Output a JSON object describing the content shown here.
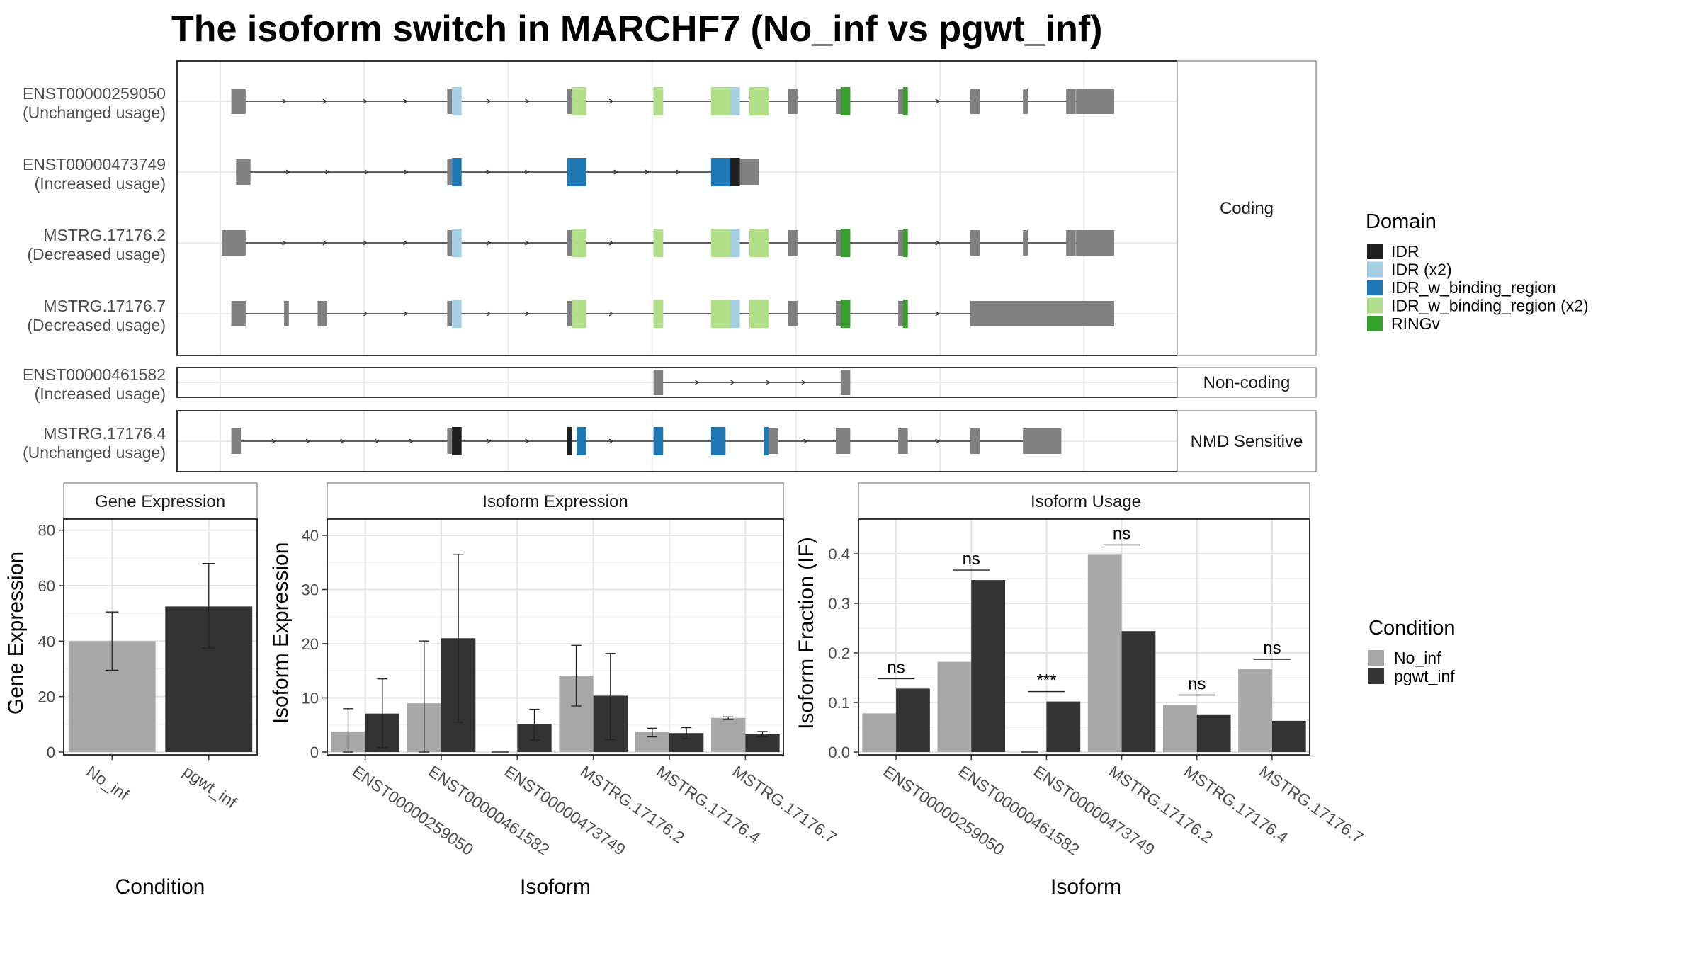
{
  "title": "The isoform switch in MARCHF7 (No_inf vs pgwt_inf)",
  "colors": {
    "IDR": "#1f1f1f",
    "IDR (x2)": "#a6cee3",
    "IDR_w_binding_region": "#1f78b4",
    "IDR_w_binding_region (x2)": "#b2df8a",
    "RINGv": "#33a02c",
    "exon": "#808080",
    "No_inf": "#a8a8a8",
    "pgwt_inf": "#333333"
  },
  "legend_domain": {
    "title": "Domain",
    "items": [
      "IDR",
      "IDR (x2)",
      "IDR_w_binding_region",
      "IDR_w_binding_region (x2)",
      "RINGv"
    ]
  },
  "legend_condition": {
    "title": "Condition",
    "items": [
      "No_inf",
      "pgwt_inf"
    ]
  },
  "facets": [
    "Coding",
    "Non-coding",
    "NMD Sensitive"
  ],
  "transcripts": [
    {
      "id": "ENST00000259050",
      "usage": "(Unchanged usage)",
      "facet": 0,
      "start": 2,
      "end": 186,
      "strand": "+",
      "exons": [
        [
          2,
          5
        ],
        [
          47,
          48
        ],
        [
          72,
          73
        ],
        [
          90,
          92
        ],
        [
          102,
          106
        ],
        [
          110,
          112
        ],
        [
          118,
          120
        ],
        [
          128,
          131
        ],
        [
          141,
          143
        ],
        [
          156,
          158
        ],
        [
          167,
          168
        ],
        [
          176,
          178
        ],
        [
          185,
          186
        ]
      ],
      "domains": [
        [
          48,
          50,
          "IDR (x2)"
        ],
        [
          73,
          74,
          "IDR_w_binding_region (x2)"
        ],
        [
          74,
          76,
          "IDR_w_binding_region (x2)"
        ],
        [
          90,
          92,
          "IDR_w_binding_region (x2)"
        ],
        [
          102,
          106,
          "IDR_w_binding_region (x2)"
        ],
        [
          106,
          108,
          "IDR (x2)"
        ],
        [
          110,
          114,
          "IDR_w_binding_region (x2)"
        ],
        [
          129,
          131,
          "RINGv"
        ],
        [
          142,
          143,
          "RINGv"
        ]
      ],
      "thick_tail": [
        176,
        186
      ]
    },
    {
      "id": "ENST00000473749",
      "usage": "(Increased usage)",
      "facet": 0,
      "start": 3,
      "end": 112,
      "strand": "+",
      "exons": [
        [
          3,
          6
        ],
        [
          47,
          48
        ],
        [
          72,
          76
        ],
        [
          102,
          112
        ]
      ],
      "domains": [
        [
          48,
          50,
          "IDR_w_binding_region"
        ],
        [
          72,
          76,
          "IDR_w_binding_region"
        ],
        [
          102,
          106,
          "IDR_w_binding_region"
        ],
        [
          106,
          108,
          "IDR"
        ]
      ],
      "thick_tail": [
        110,
        112
      ]
    },
    {
      "id": "MSTRG.17176.2",
      "usage": "(Decreased usage)",
      "facet": 0,
      "start": 0,
      "end": 186,
      "strand": "+",
      "exons": [
        [
          0,
          5
        ],
        [
          47,
          48
        ],
        [
          72,
          73
        ],
        [
          90,
          92
        ],
        [
          102,
          106
        ],
        [
          110,
          112
        ],
        [
          118,
          120
        ],
        [
          128,
          131
        ],
        [
          141,
          143
        ],
        [
          156,
          158
        ],
        [
          167,
          168
        ],
        [
          176,
          178
        ],
        [
          185,
          186
        ]
      ],
      "domains": [
        [
          48,
          50,
          "IDR (x2)"
        ],
        [
          73,
          74,
          "IDR_w_binding_region (x2)"
        ],
        [
          74,
          76,
          "IDR_w_binding_region (x2)"
        ],
        [
          90,
          92,
          "IDR_w_binding_region (x2)"
        ],
        [
          102,
          106,
          "IDR_w_binding_region (x2)"
        ],
        [
          106,
          108,
          "IDR (x2)"
        ],
        [
          110,
          114,
          "IDR_w_binding_region (x2)"
        ],
        [
          129,
          131,
          "RINGv"
        ],
        [
          142,
          143,
          "RINGv"
        ]
      ],
      "thick_tail": [
        176,
        186
      ]
    },
    {
      "id": "MSTRG.17176.7",
      "usage": "(Decreased usage)",
      "facet": 0,
      "start": 2,
      "end": 186,
      "strand": "+",
      "exons": [
        [
          2,
          5
        ],
        [
          13,
          14
        ],
        [
          20,
          22
        ],
        [
          47,
          48
        ],
        [
          72,
          73
        ],
        [
          90,
          92
        ],
        [
          102,
          106
        ],
        [
          110,
          112
        ],
        [
          118,
          120
        ],
        [
          128,
          131
        ],
        [
          141,
          143
        ],
        [
          156,
          186
        ]
      ],
      "domains": [
        [
          48,
          50,
          "IDR (x2)"
        ],
        [
          73,
          74,
          "IDR_w_binding_region (x2)"
        ],
        [
          74,
          76,
          "IDR_w_binding_region (x2)"
        ],
        [
          90,
          92,
          "IDR_w_binding_region (x2)"
        ],
        [
          102,
          106,
          "IDR_w_binding_region (x2)"
        ],
        [
          106,
          108,
          "IDR (x2)"
        ],
        [
          110,
          114,
          "IDR_w_binding_region (x2)"
        ],
        [
          129,
          131,
          "RINGv"
        ],
        [
          142,
          143,
          "RINGv"
        ]
      ],
      "thick_tail": [
        156,
        186
      ]
    },
    {
      "id": "ENST00000461582",
      "usage": "(Increased usage)",
      "facet": 1,
      "start": 90,
      "end": 131,
      "strand": "+",
      "exons": [
        [
          90,
          92
        ],
        [
          129,
          131
        ]
      ],
      "domains": [],
      "thick_tail": null
    },
    {
      "id": "MSTRG.17176.4",
      "usage": "(Unchanged usage)",
      "facet": 2,
      "start": 2,
      "end": 175,
      "strand": "+",
      "exons": [
        [
          2,
          4
        ],
        [
          47,
          48
        ],
        [
          72,
          73
        ],
        [
          90,
          92
        ],
        [
          102,
          105
        ],
        [
          113,
          116
        ],
        [
          128,
          131
        ],
        [
          141,
          143
        ],
        [
          156,
          158
        ],
        [
          167,
          175
        ]
      ],
      "domains": [
        [
          48,
          50,
          "IDR"
        ],
        [
          72,
          73,
          "IDR"
        ],
        [
          74,
          76,
          "IDR_w_binding_region"
        ],
        [
          90,
          92,
          "IDR_w_binding_region"
        ],
        [
          102,
          105,
          "IDR_w_binding_region"
        ],
        [
          113,
          114,
          "IDR_w_binding_region"
        ]
      ],
      "thick_tail": null
    }
  ],
  "chart_data": [
    {
      "type": "bar",
      "title": "Gene Expression",
      "xlabel": "Condition",
      "ylabel": "Gene Expression",
      "categories": [
        "No_inf",
        "pgwt_inf"
      ],
      "values": [
        40,
        52.5
      ],
      "error_low": [
        29.5,
        37.5
      ],
      "error_high": [
        50.5,
        68
      ],
      "ylim": [
        0,
        84
      ],
      "yticks": [
        0,
        20,
        40,
        60,
        80
      ]
    },
    {
      "type": "bar",
      "title": "Isoform Expression",
      "xlabel": "Isoform",
      "ylabel": "Isoform Expression",
      "categories": [
        "ENST00000259050",
        "ENST00000461582",
        "ENST00000473749",
        "MSTRG.17176.2",
        "MSTRG.17176.4",
        "MSTRG.17176.7"
      ],
      "series": [
        {
          "name": "No_inf",
          "values": [
            3.8,
            9,
            0,
            14.1,
            3.7,
            6.3
          ],
          "err_low": [
            0,
            0,
            0,
            8.5,
            2.8,
            6
          ],
          "err_high": [
            8,
            20.5,
            0,
            19.7,
            4.4,
            6.5
          ]
        },
        {
          "name": "pgwt_inf",
          "values": [
            7.1,
            21,
            5.2,
            10.4,
            3.5,
            3.3
          ],
          "err_low": [
            0.8,
            5.5,
            2.2,
            2.3,
            2.5,
            2.8
          ],
          "err_high": [
            13.5,
            36.5,
            7.9,
            18.2,
            4.5,
            3.8
          ]
        }
      ],
      "ylim": [
        0,
        43
      ],
      "yticks": [
        0,
        10,
        20,
        30,
        40
      ]
    },
    {
      "type": "bar",
      "title": "Isoform Usage",
      "xlabel": "Isoform",
      "ylabel": "Isoform Fraction (IF)",
      "categories": [
        "ENST00000259050",
        "ENST00000461582",
        "ENST00000473749",
        "MSTRG.17176.2",
        "MSTRG.17176.4",
        "MSTRG.17176.7"
      ],
      "series": [
        {
          "name": "No_inf",
          "values": [
            0.078,
            0.182,
            0,
            0.398,
            0.095,
            0.167
          ]
        },
        {
          "name": "pgwt_inf",
          "values": [
            0.128,
            0.347,
            0.102,
            0.244,
            0.076,
            0.063
          ]
        }
      ],
      "significance": [
        "ns",
        "ns",
        "***",
        "ns",
        "ns",
        "ns"
      ],
      "ylim": [
        0,
        0.47
      ],
      "yticks": [
        0.0,
        0.1,
        0.2,
        0.3,
        0.4
      ],
      "ytick_labels": [
        "0.0",
        "0.1",
        "0.2",
        "0.3",
        "0.4"
      ]
    }
  ]
}
